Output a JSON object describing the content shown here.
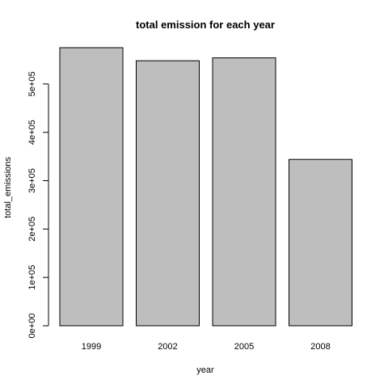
{
  "chart_data": {
    "type": "bar",
    "title": "total emission for each year",
    "xlabel": "year",
    "ylabel": "total_emissions",
    "categories": [
      "1999",
      "2002",
      "2005",
      "2008"
    ],
    "values": [
      575000,
      548000,
      554000,
      344000
    ],
    "ylim": [
      0,
      575000
    ],
    "yticks": [
      {
        "value": 0,
        "label": "0e+00"
      },
      {
        "value": 100000,
        "label": "1e+05"
      },
      {
        "value": 200000,
        "label": "2e+05"
      },
      {
        "value": 300000,
        "label": "3e+05"
      },
      {
        "value": 400000,
        "label": "4e+05"
      },
      {
        "value": 500000,
        "label": "5e+05"
      }
    ],
    "bar_color": "#bebebe",
    "bar_border": "#000000",
    "grid": false,
    "legend": "none"
  }
}
